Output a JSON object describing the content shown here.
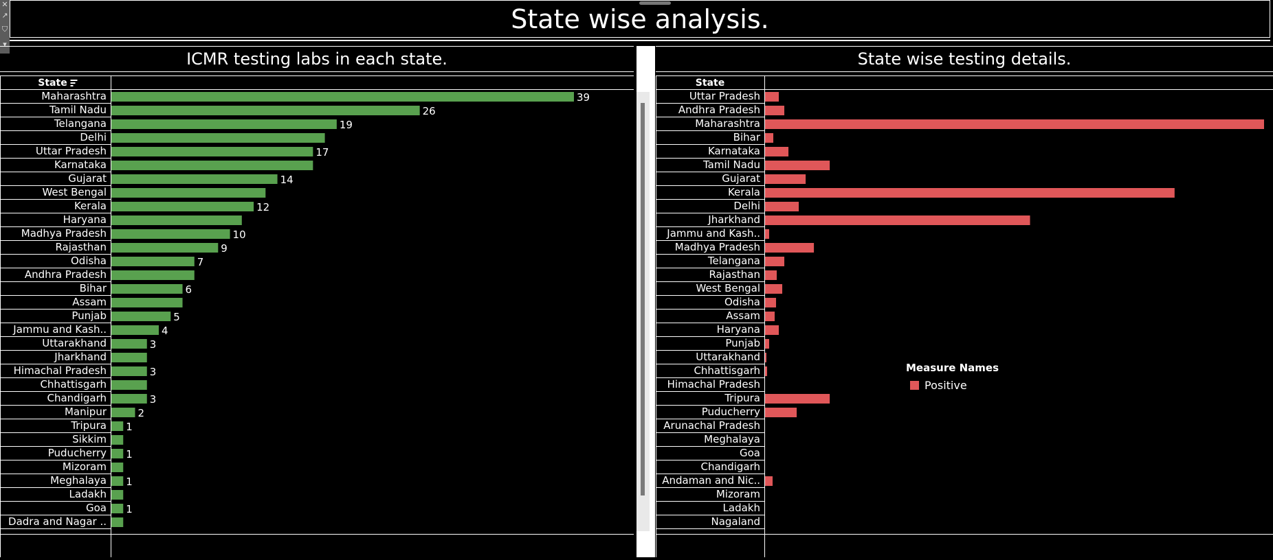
{
  "dashboard": {
    "title": "State wise analysis."
  },
  "panels": [
    {
      "title": "ICMR testing labs in each state.",
      "header": "State"
    },
    {
      "title": "State wise testing details.",
      "header": "State"
    }
  ],
  "legend": {
    "title": "Measure Names",
    "items": [
      {
        "label": "Positive",
        "color": "#e05759"
      }
    ]
  },
  "colors": {
    "labs_bar": "#59a14f",
    "positive_bar": "#e05759",
    "background": "#000000",
    "text": "#ffffff"
  },
  "icons": [
    "close-icon",
    "popout-icon",
    "filter-icon",
    "dropdown-icon",
    "sort-icon"
  ],
  "chart_data": [
    {
      "type": "bar",
      "orientation": "horizontal",
      "title": "ICMR testing labs in each state.",
      "categories": [
        "Maharashtra",
        "Tamil Nadu",
        "Telangana",
        "Delhi",
        "Uttar Pradesh",
        "Karnataka",
        "Gujarat",
        "West Bengal",
        "Kerala",
        "Haryana",
        "Madhya Pradesh",
        "Rajasthan",
        "Odisha",
        "Andhra Pradesh",
        "Bihar",
        "Assam",
        "Punjab",
        "Jammu and Kash..",
        "Uttarakhand",
        "Jharkhand",
        "Himachal Pradesh",
        "Chhattisgarh",
        "Chandigarh",
        "Manipur",
        "Tripura",
        "Sikkim",
        "Puducherry",
        "Mizoram",
        "Meghalaya",
        "Ladakh",
        "Goa",
        "Dadra and Nagar .."
      ],
      "values": [
        39,
        26,
        19,
        18,
        17,
        17,
        14,
        13,
        12,
        11,
        10,
        9,
        7,
        7,
        6,
        6,
        5,
        4,
        3,
        3,
        3,
        3,
        3,
        2,
        1,
        1,
        1,
        1,
        1,
        1,
        1,
        1
      ],
      "data_labels": [
        "39",
        "26",
        "19",
        "",
        "17",
        "",
        "14",
        "",
        "12",
        "",
        "10",
        "9",
        "7",
        "",
        "6",
        "",
        "5",
        "4",
        "3",
        "",
        "3",
        "",
        "3",
        "2",
        "1",
        "",
        "1",
        "",
        "1",
        "",
        "1",
        ""
      ],
      "xlim": [
        0,
        43
      ],
      "grid": false
    },
    {
      "type": "bar",
      "orientation": "horizontal",
      "title": "State wise testing details.",
      "categories": [
        "Uttar Pradesh",
        "Andhra Pradesh",
        "Maharashtra",
        "Bihar",
        "Karnataka",
        "Tamil Nadu",
        "Gujarat",
        "Kerala",
        "Delhi",
        "Jharkhand",
        "Jammu and Kash..",
        "Madhya Pradesh",
        "Telangana",
        "Rajasthan",
        "West Bengal",
        "Odisha",
        "Assam",
        "Haryana",
        "Punjab",
        "Uttarakhand",
        "Chhattisgarh",
        "Himachal Pradesh",
        "Tripura",
        "Puducherry",
        "Arunachal Pradesh",
        "Meghalaya",
        "Goa",
        "Chandigarh",
        "Andaman and Nic..",
        "Mizoram",
        "Ladakh",
        "Nagaland"
      ],
      "series": [
        {
          "name": "Positive",
          "values": [
            20,
            28,
            725,
            12,
            34,
            94,
            59,
            595,
            49,
            385,
            6,
            71,
            28,
            17,
            25,
            16,
            14,
            20,
            6,
            2,
            3,
            0,
            94,
            46,
            0,
            0,
            0,
            0,
            11,
            0,
            0,
            0
          ]
        }
      ],
      "xlim": [
        0,
        725
      ],
      "legend": "right",
      "grid": false
    }
  ]
}
